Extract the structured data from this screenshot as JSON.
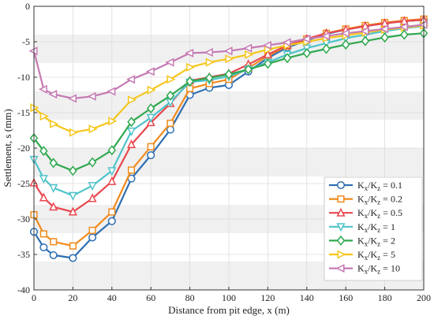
{
  "chart_data": {
    "type": "line",
    "xlabel": "Distance from pit edge, x (m)",
    "ylabel": "Settlement, s (mm)",
    "xlim": [
      0,
      200
    ],
    "ylim": [
      -40,
      0
    ],
    "xticks": [
      0,
      20,
      40,
      60,
      80,
      100,
      120,
      140,
      160,
      180,
      200
    ],
    "yticks": [
      0,
      -5,
      -10,
      -15,
      -20,
      -25,
      -30,
      -35,
      -40
    ],
    "background_bands": true,
    "legend_position": "bottom-right",
    "x": [
      0,
      5,
      10,
      20,
      30,
      40,
      50,
      60,
      70,
      80,
      90,
      100,
      110,
      120,
      130,
      140,
      150,
      160,
      170,
      180,
      190,
      200
    ],
    "series": [
      {
        "name_main": "K",
        "name_sub1": "x",
        "name_mid": "/K",
        "name_sub2": "z",
        "name_value": " = 0.1",
        "color": "#2e6fb2",
        "marker": "circle",
        "values": [
          -31.8,
          -34.0,
          -35.1,
          -35.5,
          -32.6,
          -30.3,
          -24.3,
          -21.0,
          -17.4,
          -12.5,
          -11.5,
          -11.1,
          -9.2,
          -7.3,
          -5.8,
          -4.8,
          -3.9,
          -3.3,
          -2.8,
          -2.4,
          -2.1,
          -1.9
        ]
      },
      {
        "name_main": "K",
        "name_sub1": "x",
        "name_mid": "/K",
        "name_sub2": "z",
        "name_value": " = 0.2",
        "color": "#f08a1c",
        "marker": "square",
        "values": [
          -29.4,
          -32.1,
          -33.2,
          -33.8,
          -31.6,
          -29.0,
          -23.1,
          -19.8,
          -16.5,
          -11.6,
          -10.9,
          -10.3,
          -8.7,
          -7.0,
          -5.6,
          -4.6,
          -3.8,
          -3.2,
          -2.7,
          -2.3,
          -2.0,
          -1.8
        ]
      },
      {
        "name_main": "K",
        "name_sub1": "x",
        "name_mid": "/K",
        "name_sub2": "z",
        "name_value": " = 0.5",
        "color": "#e8484e",
        "marker": "triangle-up",
        "values": [
          -24.9,
          -27.0,
          -28.3,
          -29.0,
          -27.1,
          -24.7,
          -19.5,
          -16.4,
          -13.7,
          -10.5,
          -10.0,
          -9.5,
          -8.2,
          -6.8,
          -5.5,
          -4.6,
          -3.8,
          -3.3,
          -2.8,
          -2.4,
          -2.1,
          -1.9
        ]
      },
      {
        "name_main": "K",
        "name_sub1": "x",
        "name_mid": "/K",
        "name_sub2": "z",
        "name_value": " = 1",
        "color": "#4ec3c9",
        "marker": "triangle-down",
        "values": [
          -21.6,
          -24.3,
          -25.6,
          -26.7,
          -25.3,
          -23.2,
          -17.6,
          -15.7,
          -13.5,
          -10.7,
          -10.4,
          -9.9,
          -8.9,
          -7.9,
          -6.8,
          -5.9,
          -5.2,
          -4.5,
          -4.0,
          -3.5,
          -3.1,
          -2.8
        ]
      },
      {
        "name_main": "K",
        "name_sub1": "x",
        "name_mid": "/K",
        "name_sub2": "z",
        "name_value": " = 2",
        "color": "#2fa84f",
        "marker": "diamond",
        "values": [
          -18.6,
          -20.4,
          -22.1,
          -23.2,
          -22.0,
          -20.3,
          -16.3,
          -14.4,
          -12.6,
          -10.6,
          -10.1,
          -9.6,
          -8.9,
          -8.1,
          -7.3,
          -6.6,
          -6.0,
          -5.4,
          -4.9,
          -4.4,
          -4.0,
          -3.8
        ]
      },
      {
        "name_main": "K",
        "name_sub1": "x",
        "name_mid": "/K",
        "name_sub2": "z",
        "name_value": " = 5",
        "color": "#f5c61a",
        "marker": "triangle-right",
        "values": [
          -14.3,
          -15.5,
          -16.6,
          -17.8,
          -17.3,
          -16.2,
          -13.2,
          -11.8,
          -10.3,
          -8.6,
          -7.9,
          -7.4,
          -6.8,
          -6.1,
          -5.5,
          -5.0,
          -4.5,
          -4.1,
          -3.7,
          -3.3,
          -3.0,
          -2.7
        ]
      },
      {
        "name_main": "K",
        "name_sub1": "x",
        "name_mid": "/K",
        "name_sub2": "z",
        "name_value": " = 10",
        "color": "#c57ab3",
        "marker": "triangle-left",
        "values": [
          -6.3,
          -11.7,
          -12.4,
          -13.0,
          -12.7,
          -12.0,
          -10.3,
          -9.2,
          -7.9,
          -6.6,
          -6.5,
          -6.3,
          -5.9,
          -5.5,
          -5.1,
          -4.6,
          -4.2,
          -3.8,
          -3.5,
          -3.2,
          -2.9,
          -2.6
        ]
      }
    ]
  }
}
